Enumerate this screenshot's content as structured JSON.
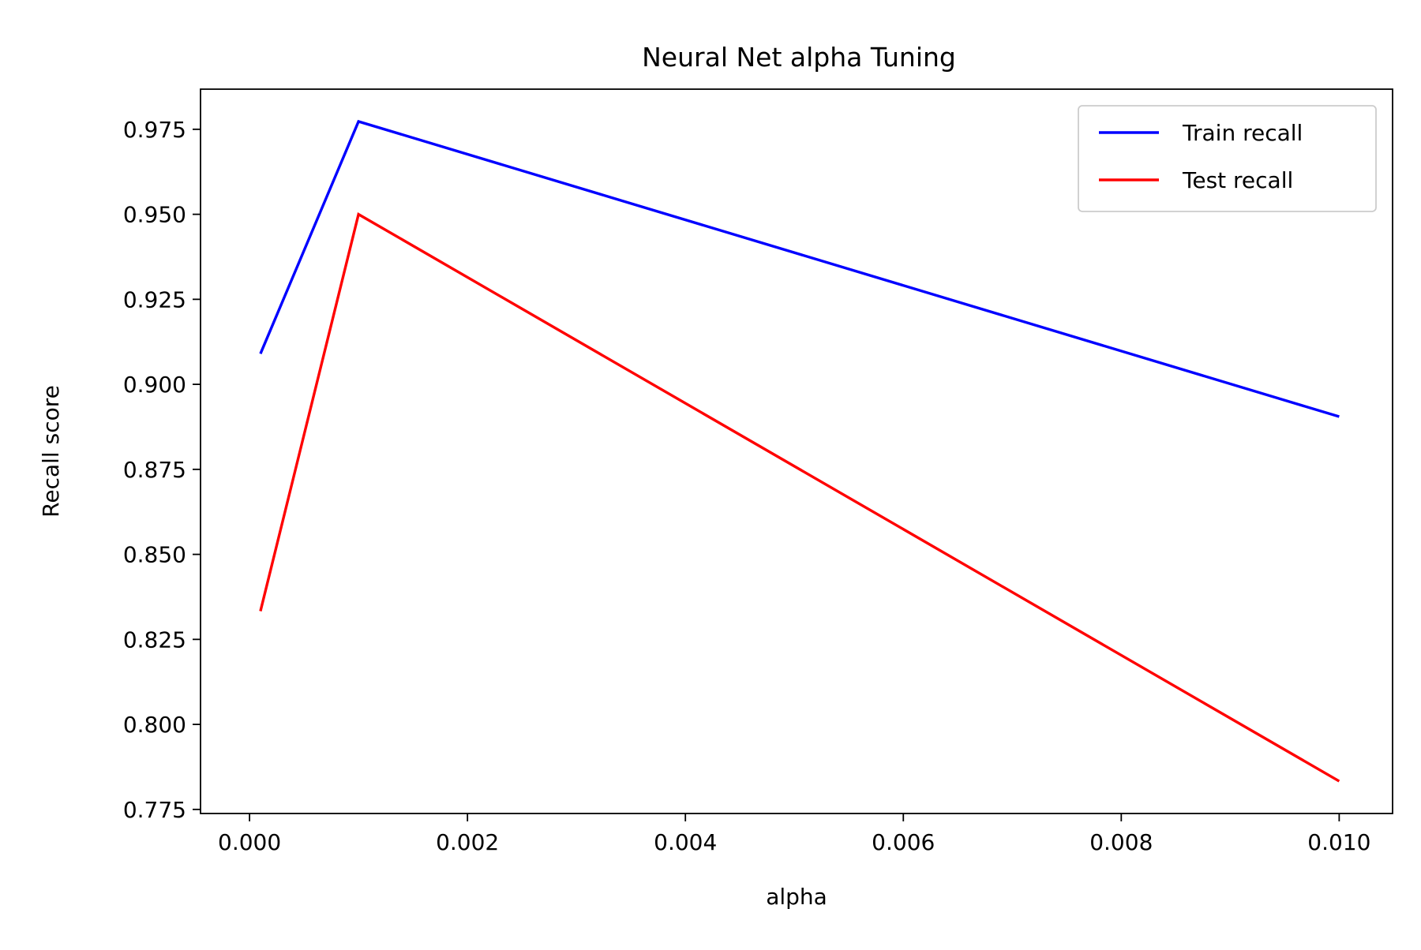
{
  "chart_data": {
    "type": "line",
    "title": "Neural Net alpha Tuning",
    "xlabel": "alpha",
    "ylabel": "Recall score",
    "xlim": [
      -0.00045,
      0.01049
    ],
    "ylim": [
      0.7738,
      0.9868
    ],
    "x_ticks": [
      0.0,
      0.002,
      0.004,
      0.006,
      0.008,
      0.01
    ],
    "x_tick_labels": [
      "0.000",
      "0.002",
      "0.004",
      "0.006",
      "0.008",
      "0.010"
    ],
    "y_ticks": [
      0.775,
      0.8,
      0.825,
      0.85,
      0.875,
      0.9,
      0.925,
      0.95,
      0.975
    ],
    "y_tick_labels": [
      "0.775",
      "0.800",
      "0.825",
      "0.850",
      "0.875",
      "0.900",
      "0.925",
      "0.950",
      "0.975"
    ],
    "grid": false,
    "legend_position": "top-right",
    "series": [
      {
        "name": "Train recall",
        "color": "#0000ff",
        "x": [
          0.0001,
          0.001,
          0.01
        ],
        "y": [
          0.909,
          0.9773,
          0.8905
        ]
      },
      {
        "name": "Test recall",
        "color": "#ff0000",
        "x": [
          0.0001,
          0.001,
          0.01
        ],
        "y": [
          0.8333,
          0.95,
          0.7833
        ]
      }
    ]
  }
}
